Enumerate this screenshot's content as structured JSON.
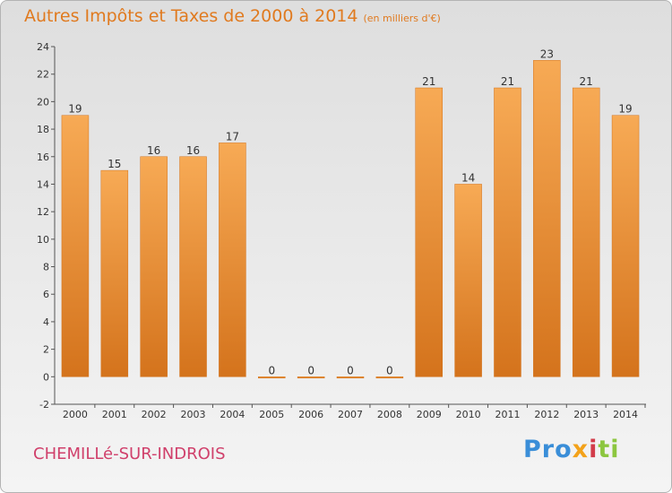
{
  "chart_data": {
    "type": "bar",
    "title": "Autres Impôts et Taxes de 2000 à 2014",
    "subtitle": "(en milliers d'€)",
    "categories": [
      "2000",
      "2001",
      "2002",
      "2003",
      "2004",
      "2005",
      "2006",
      "2007",
      "2008",
      "2009",
      "2010",
      "2011",
      "2012",
      "2013",
      "2014"
    ],
    "values": [
      19,
      15,
      16,
      16,
      17,
      0,
      0,
      0,
      0,
      21,
      14,
      21,
      23,
      21,
      19
    ],
    "ylim": [
      -2,
      24
    ],
    "yticks": [
      -2,
      0,
      2,
      4,
      6,
      8,
      10,
      12,
      14,
      16,
      18,
      20,
      22,
      24
    ],
    "grid": false,
    "bar_color": "#f5a04a",
    "bar_color_dark": "#d4731c"
  },
  "footer": {
    "place": "CHEMILLé-SUR-INDROIS",
    "brand_letters": [
      "Pro",
      "x",
      "i",
      "ti"
    ]
  }
}
